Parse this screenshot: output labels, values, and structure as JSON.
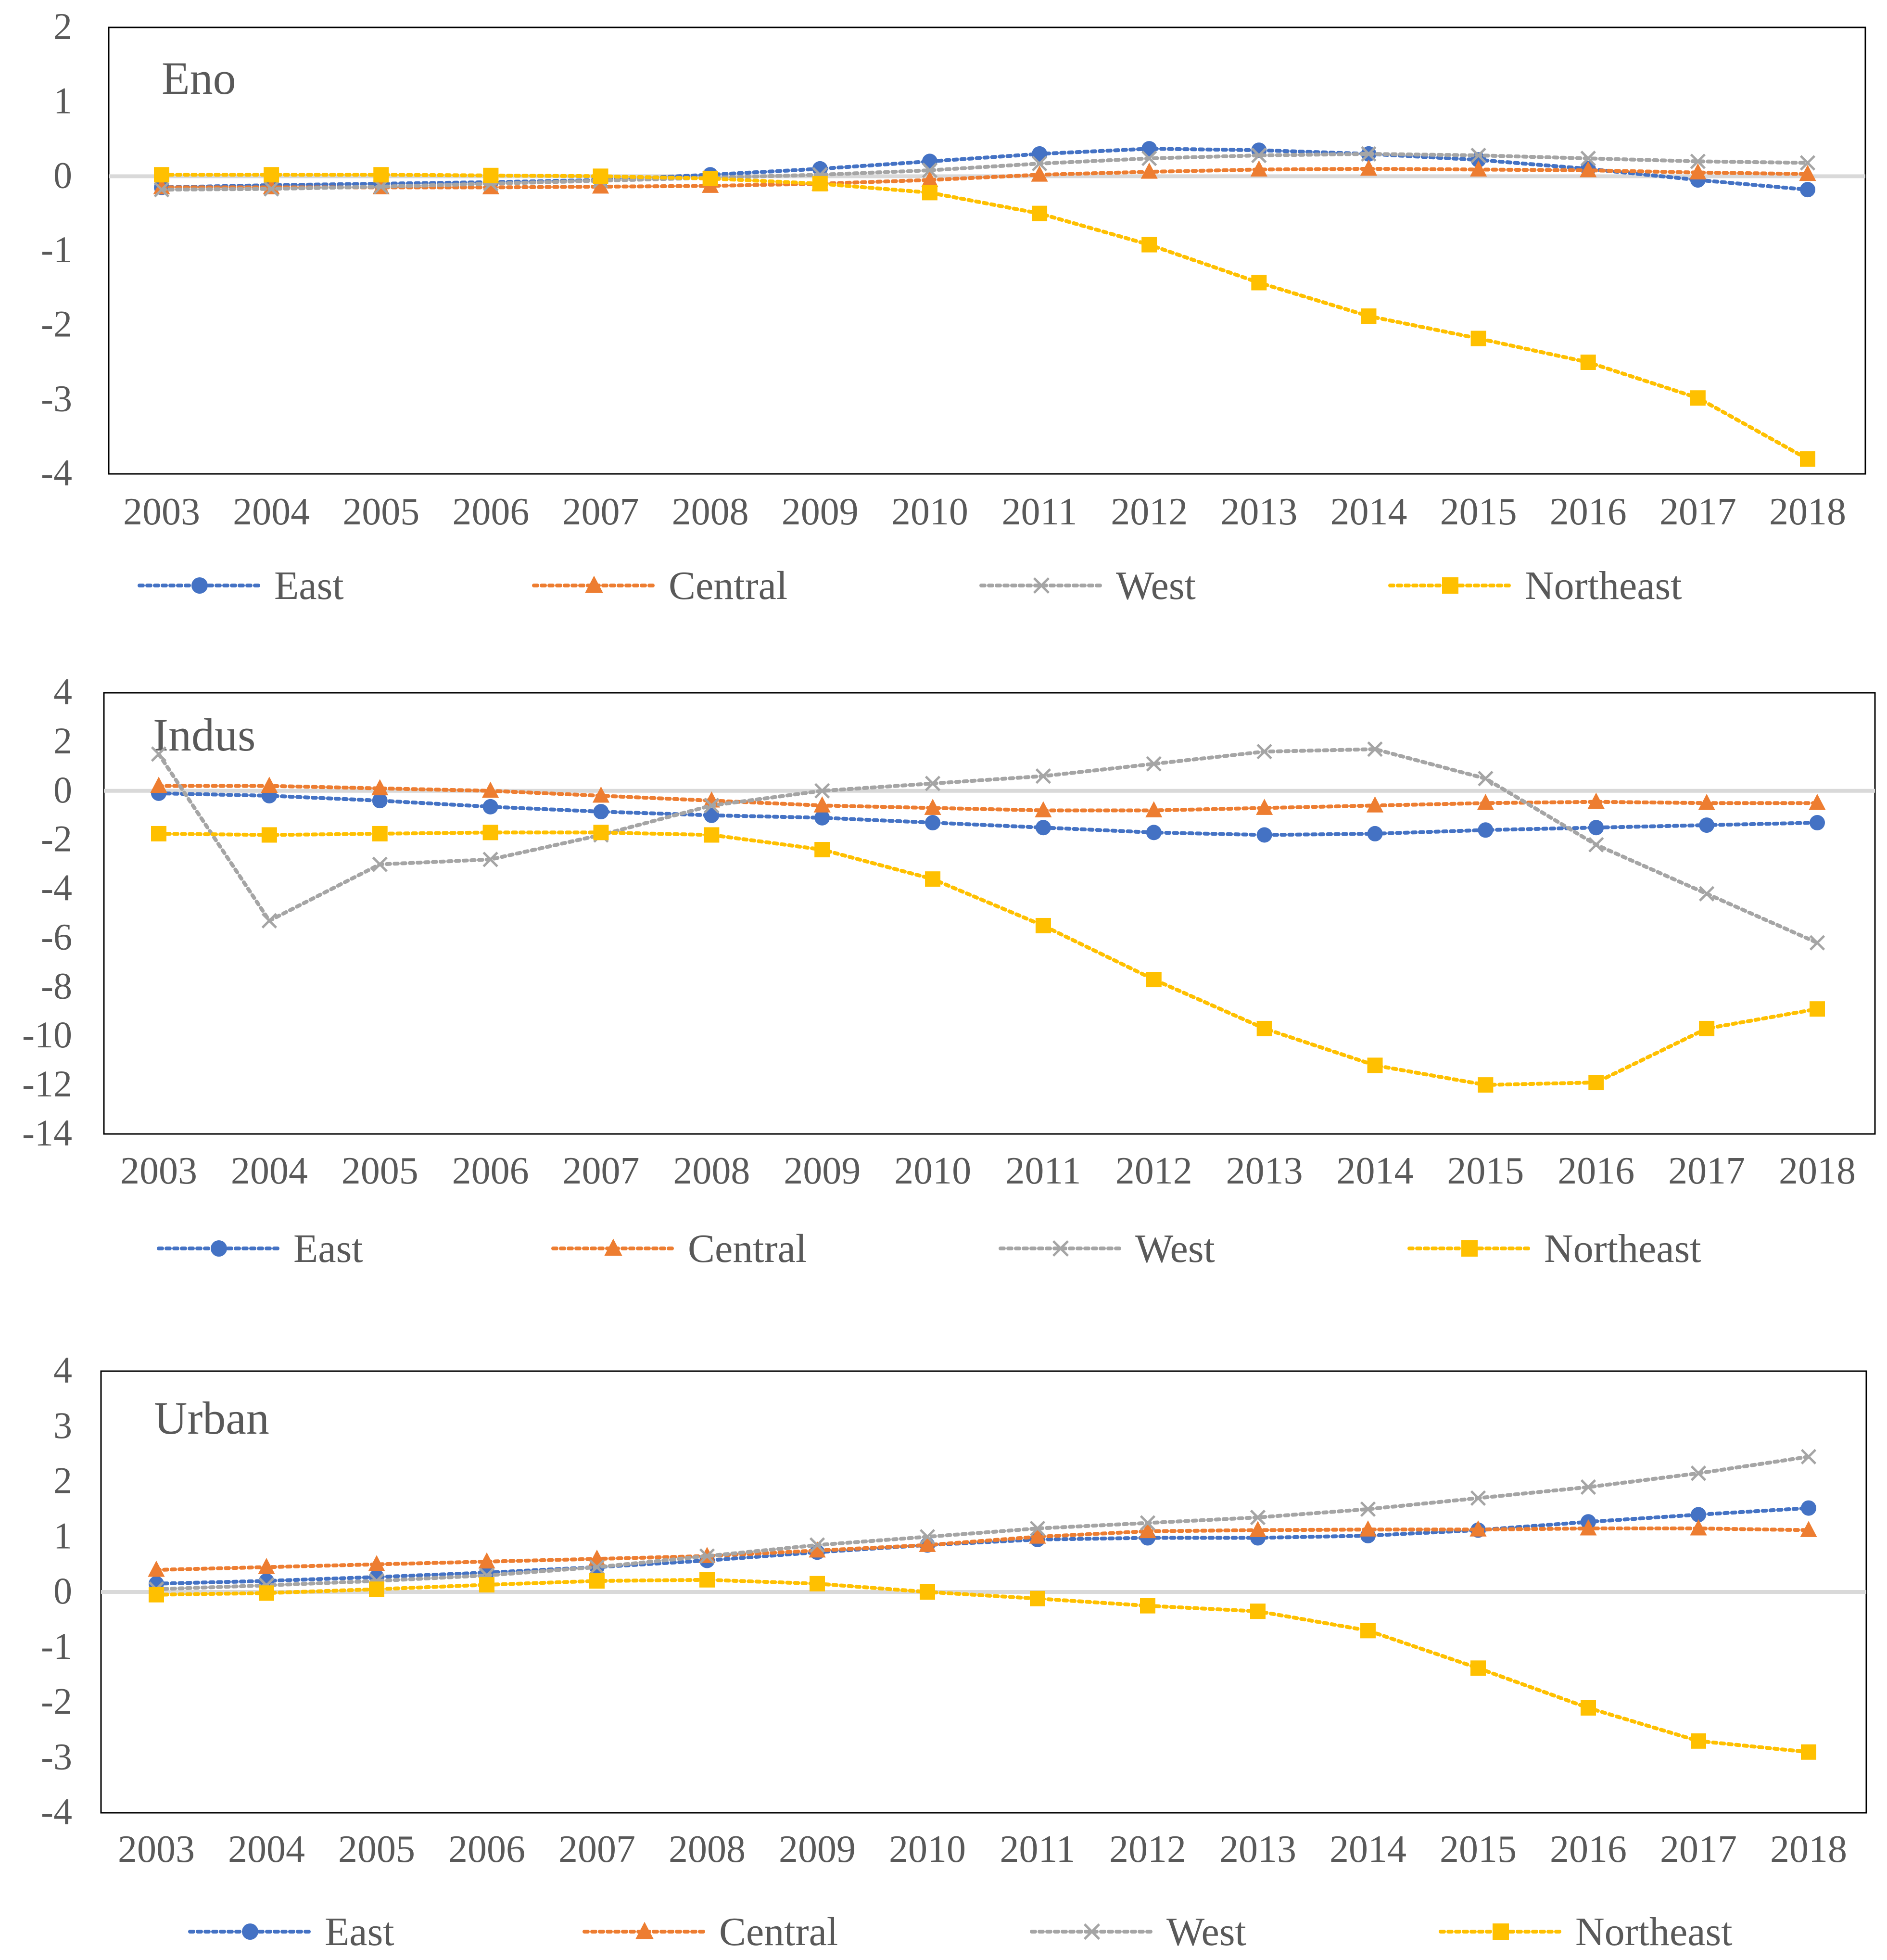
{
  "colors": {
    "East": "#4472C4",
    "Central": "#ED7D31",
    "West": "#A5A5A5",
    "Northeast": "#FFC000",
    "axis": "#000000",
    "zero_line": "#D9D9D9",
    "tick_text": "#595959"
  },
  "chart_data": [
    {
      "type": "line",
      "title": "Eno",
      "x": [
        "2003",
        "2004",
        "2005",
        "2006",
        "2007",
        "2008",
        "2009",
        "2010",
        "2011",
        "2012",
        "2013",
        "2014",
        "2015",
        "2016",
        "2017",
        "2018"
      ],
      "ylim": [
        -4,
        2
      ],
      "yticks": [
        "2",
        "1",
        "0",
        "-1",
        "-2",
        "-3",
        "-4"
      ],
      "legend": "bottom",
      "series": [
        {
          "name": "East",
          "marker": "circle",
          "values": [
            -0.15,
            -0.12,
            -0.1,
            -0.08,
            -0.05,
            0.02,
            0.1,
            0.2,
            0.3,
            0.37,
            0.35,
            0.3,
            0.22,
            0.1,
            -0.05,
            -0.18
          ]
        },
        {
          "name": "Central",
          "marker": "triangle",
          "values": [
            -0.15,
            -0.15,
            -0.15,
            -0.15,
            -0.14,
            -0.13,
            -0.1,
            -0.05,
            0.02,
            0.06,
            0.09,
            0.1,
            0.09,
            0.08,
            0.05,
            0.03
          ]
        },
        {
          "name": "West",
          "marker": "x",
          "values": [
            -0.18,
            -0.17,
            -0.14,
            -0.1,
            -0.06,
            -0.02,
            0.02,
            0.08,
            0.17,
            0.24,
            0.28,
            0.3,
            0.28,
            0.24,
            0.2,
            0.18
          ]
        },
        {
          "name": "Northeast",
          "marker": "square",
          "values": [
            0.02,
            0.02,
            0.02,
            0.01,
            0.0,
            -0.03,
            -0.1,
            -0.22,
            -0.5,
            -0.92,
            -1.43,
            -1.88,
            -2.18,
            -2.5,
            -2.98,
            -3.8
          ]
        }
      ]
    },
    {
      "type": "line",
      "title": "Indus",
      "x": [
        "2003",
        "2004",
        "2005",
        "2006",
        "2007",
        "2008",
        "2009",
        "2010",
        "2011",
        "2012",
        "2013",
        "2014",
        "2015",
        "2016",
        "2017",
        "2018"
      ],
      "ylim": [
        -14,
        4
      ],
      "yticks": [
        "4",
        "2",
        "0",
        "-2",
        "-4",
        "-6",
        "-8",
        "-10",
        "-12",
        "-14"
      ],
      "legend": "bottom",
      "series": [
        {
          "name": "East",
          "marker": "circle",
          "values": [
            -0.1,
            -0.2,
            -0.4,
            -0.65,
            -0.85,
            -1.0,
            -1.1,
            -1.3,
            -1.5,
            -1.7,
            -1.8,
            -1.75,
            -1.6,
            -1.5,
            -1.4,
            -1.3
          ]
        },
        {
          "name": "Central",
          "marker": "triangle",
          "values": [
            0.2,
            0.2,
            0.1,
            0.0,
            -0.2,
            -0.4,
            -0.6,
            -0.7,
            -0.8,
            -0.8,
            -0.7,
            -0.6,
            -0.5,
            -0.45,
            -0.5,
            -0.5
          ]
        },
        {
          "name": "West",
          "marker": "x",
          "values": [
            1.5,
            -5.3,
            -3.0,
            -2.8,
            -1.8,
            -0.6,
            0.0,
            0.3,
            0.6,
            1.1,
            1.6,
            1.7,
            0.5,
            -2.2,
            -4.2,
            -6.2
          ]
        },
        {
          "name": "Northeast",
          "marker": "square",
          "values": [
            -1.75,
            -1.8,
            -1.75,
            -1.7,
            -1.7,
            -1.8,
            -2.4,
            -3.6,
            -5.5,
            -7.7,
            -9.7,
            -11.2,
            -12.0,
            -11.9,
            -9.7,
            -8.9
          ]
        }
      ]
    },
    {
      "type": "line",
      "title": "Urban",
      "x": [
        "2003",
        "2004",
        "2005",
        "2006",
        "2007",
        "2008",
        "2009",
        "2010",
        "2011",
        "2012",
        "2013",
        "2014",
        "2015",
        "2016",
        "2017",
        "2018"
      ],
      "ylim": [
        -4,
        4
      ],
      "yticks": [
        "4",
        "3",
        "2",
        "1",
        "0",
        "-1",
        "-2",
        "-3",
        "-4"
      ],
      "legend": "bottom",
      "series": [
        {
          "name": "East",
          "marker": "circle",
          "values": [
            0.15,
            0.2,
            0.27,
            0.35,
            0.45,
            0.57,
            0.72,
            0.85,
            0.95,
            0.98,
            0.98,
            1.02,
            1.12,
            1.27,
            1.4,
            1.52
          ]
        },
        {
          "name": "Central",
          "marker": "triangle",
          "values": [
            0.4,
            0.45,
            0.5,
            0.55,
            0.6,
            0.65,
            0.75,
            0.85,
            1.0,
            1.1,
            1.12,
            1.13,
            1.13,
            1.15,
            1.15,
            1.12
          ]
        },
        {
          "name": "West",
          "marker": "x",
          "values": [
            0.05,
            0.12,
            0.2,
            0.3,
            0.45,
            0.65,
            0.85,
            1.0,
            1.15,
            1.25,
            1.35,
            1.5,
            1.7,
            1.9,
            2.15,
            2.45
          ]
        },
        {
          "name": "Northeast",
          "marker": "square",
          "values": [
            -0.05,
            -0.02,
            0.05,
            0.13,
            0.2,
            0.22,
            0.15,
            0.0,
            -0.12,
            -0.25,
            -0.35,
            -0.7,
            -1.38,
            -2.1,
            -2.7,
            -2.9
          ]
        }
      ]
    }
  ]
}
